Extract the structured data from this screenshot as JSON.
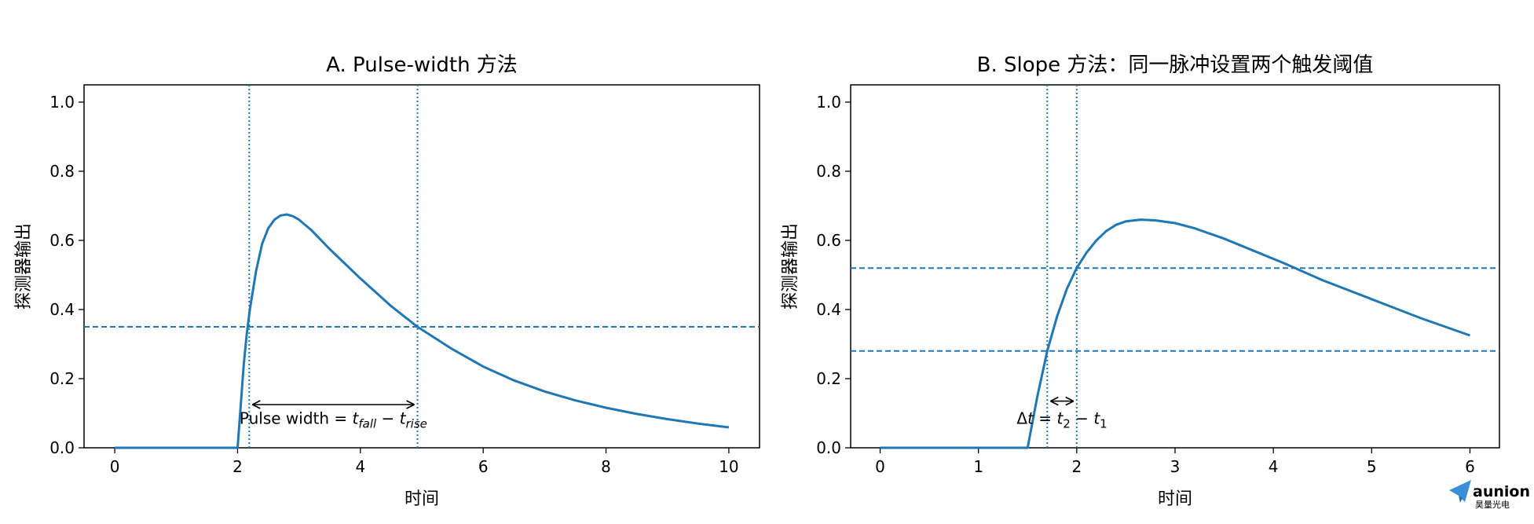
{
  "chart_data": [
    {
      "type": "line",
      "title": "A. Pulse-width 方法",
      "xlabel": "时间",
      "ylabel": "探测器输出",
      "xlim": [
        -0.5,
        10.5
      ],
      "ylim": [
        0,
        1.05
      ],
      "xticks": [
        0,
        2,
        4,
        6,
        8,
        10
      ],
      "xtick_labels": [
        "0",
        "2",
        "4",
        "6",
        "8",
        "10"
      ],
      "yticks": [
        0.0,
        0.2,
        0.4,
        0.6,
        0.8,
        1.0
      ],
      "ytick_labels": [
        "0.0",
        "0.2",
        "0.4",
        "0.6",
        "0.8",
        "1.0"
      ],
      "grid": false,
      "colors": {
        "series": "#1f77b4",
        "annotation": "#000000"
      },
      "series": [
        {
          "x": [
            0,
            1,
            2.0,
            2.05,
            2.1,
            2.15,
            2.2,
            2.3,
            2.4,
            2.5,
            2.6,
            2.7,
            2.8,
            2.9,
            3.0,
            3.2,
            3.5,
            4.0,
            4.5,
            4.93,
            5.5,
            6.0,
            6.5,
            7.0,
            7.5,
            8.0,
            8.5,
            9.0,
            9.5,
            10.0
          ],
          "y": [
            0,
            0,
            0.0,
            0.12,
            0.24,
            0.33,
            0.4,
            0.51,
            0.59,
            0.635,
            0.66,
            0.672,
            0.675,
            0.67,
            0.66,
            0.63,
            0.575,
            0.49,
            0.41,
            0.35,
            0.285,
            0.235,
            0.195,
            0.163,
            0.137,
            0.116,
            0.098,
            0.083,
            0.07,
            0.059
          ]
        }
      ],
      "hlines": [
        {
          "y": 0.35,
          "style": "dashed"
        }
      ],
      "vlines": [
        {
          "x": 2.19,
          "style": "dotted"
        },
        {
          "x": 4.93,
          "style": "dotted"
        }
      ],
      "arrow": {
        "x1": 2.19,
        "x2": 4.93,
        "y": 0.125,
        "heads": "both"
      },
      "annotation": {
        "x": 3.56,
        "y": 0.085,
        "text_parts": [
          {
            "text": "Pulse width = ",
            "italic": false
          },
          {
            "text": "t",
            "italic": true
          },
          {
            "text": "fall",
            "italic": true,
            "sub": true
          },
          {
            "text": " − ",
            "italic": false
          },
          {
            "text": "t",
            "italic": true
          },
          {
            "text": "rise",
            "italic": true,
            "sub": true
          }
        ]
      }
    },
    {
      "type": "line",
      "title": "B. Slope 方法：同一脉冲设置两个触发阈值",
      "xlabel": "时间",
      "ylabel": "探测器输出",
      "xlim": [
        -0.3,
        6.3
      ],
      "ylim": [
        0,
        1.05
      ],
      "xticks": [
        0,
        1,
        2,
        3,
        4,
        5,
        6
      ],
      "xtick_labels": [
        "0",
        "1",
        "2",
        "3",
        "4",
        "5",
        "6"
      ],
      "yticks": [
        0.0,
        0.2,
        0.4,
        0.6,
        0.8,
        1.0
      ],
      "ytick_labels": [
        "0.0",
        "0.2",
        "0.4",
        "0.6",
        "0.8",
        "1.0"
      ],
      "grid": false,
      "colors": {
        "series": "#1f77b4",
        "annotation": "#000000"
      },
      "series": [
        {
          "x": [
            0,
            0.5,
            1.0,
            1.5,
            1.6,
            1.7,
            1.8,
            1.9,
            2.0,
            2.1,
            2.2,
            2.3,
            2.4,
            2.5,
            2.65,
            2.8,
            3.0,
            3.2,
            3.5,
            3.8,
            4.1,
            4.5,
            5.0,
            5.5,
            6.0
          ],
          "y": [
            0,
            0,
            0,
            0.0,
            0.15,
            0.28,
            0.38,
            0.46,
            0.52,
            0.565,
            0.6,
            0.627,
            0.645,
            0.655,
            0.66,
            0.658,
            0.65,
            0.635,
            0.605,
            0.57,
            0.535,
            0.485,
            0.43,
            0.375,
            0.325
          ]
        }
      ],
      "hlines": [
        {
          "y": 0.28,
          "style": "dashed"
        },
        {
          "y": 0.52,
          "style": "dashed"
        }
      ],
      "vlines": [
        {
          "x": 1.7,
          "style": "dotted"
        },
        {
          "x": 2.0,
          "style": "dotted"
        }
      ],
      "arrow": {
        "x1": 1.7,
        "x2": 2.0,
        "y": 0.135,
        "heads": "both"
      },
      "annotation": {
        "x": 1.85,
        "y": 0.085,
        "text_parts": [
          {
            "text": "Δ",
            "italic": false
          },
          {
            "text": "t",
            "italic": true
          },
          {
            "text": " = ",
            "italic": false
          },
          {
            "text": "t",
            "italic": true
          },
          {
            "text": "2",
            "italic": false,
            "sub": true
          },
          {
            "text": " − ",
            "italic": false
          },
          {
            "text": "t",
            "italic": true
          },
          {
            "text": "1",
            "italic": false,
            "sub": true
          }
        ]
      }
    }
  ],
  "watermark": {
    "name": "aunion",
    "subtitle": "昊量光电",
    "color": "#3a8fd6"
  }
}
